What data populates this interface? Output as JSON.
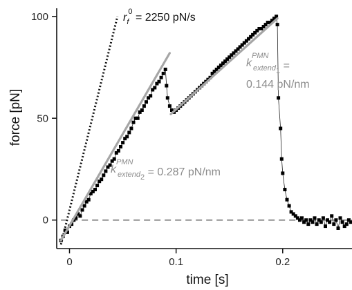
{
  "chart_data": {
    "type": "scatter",
    "title": "",
    "xlabel": "time  [s]",
    "ylabel": "force  [pN]",
    "xlim": [
      -0.012,
      0.265
    ],
    "ylim": [
      -14,
      104
    ],
    "x_ticks": [
      0,
      0.1,
      0.2
    ],
    "x_tick_labels": [
      "0",
      "0.1",
      "0.2"
    ],
    "y_ticks": [
      0,
      50,
      100
    ],
    "y_tick_labels": [
      "0",
      "50",
      "100"
    ],
    "grid": false,
    "legend": "none",
    "colors": {
      "data": "#000000",
      "fit": "#a6a6a6",
      "annotation_fit": "#8c8c8c",
      "baseline": "#909090",
      "loading_rate": "#111111"
    },
    "series": [
      {
        "name": "",
        "style": "markers with thin connecting line",
        "points": [
          [
            -0.008,
            -10
          ],
          [
            -0.006,
            -8
          ],
          [
            -0.004,
            -5
          ],
          [
            -0.002,
            -6
          ],
          [
            0,
            -3
          ],
          [
            0.002,
            -2
          ],
          [
            0.004,
            0
          ],
          [
            0.006,
            1
          ],
          [
            0.008,
            3
          ],
          [
            0.01,
            2
          ],
          [
            0.012,
            5
          ],
          [
            0.014,
            7
          ],
          [
            0.016,
            9
          ],
          [
            0.018,
            10
          ],
          [
            0.02,
            13
          ],
          [
            0.022,
            14
          ],
          [
            0.024,
            15
          ],
          [
            0.026,
            17
          ],
          [
            0.028,
            19
          ],
          [
            0.03,
            20
          ],
          [
            0.032,
            22
          ],
          [
            0.034,
            24
          ],
          [
            0.036,
            26
          ],
          [
            0.038,
            27
          ],
          [
            0.04,
            29
          ],
          [
            0.042,
            30
          ],
          [
            0.044,
            33
          ],
          [
            0.046,
            34
          ],
          [
            0.048,
            36
          ],
          [
            0.05,
            38
          ],
          [
            0.052,
            40
          ],
          [
            0.054,
            41
          ],
          [
            0.056,
            43
          ],
          [
            0.058,
            45
          ],
          [
            0.06,
            48
          ],
          [
            0.062,
            50
          ],
          [
            0.064,
            50
          ],
          [
            0.066,
            53
          ],
          [
            0.068,
            54
          ],
          [
            0.07,
            56
          ],
          [
            0.072,
            58
          ],
          [
            0.074,
            60
          ],
          [
            0.076,
            61
          ],
          [
            0.078,
            64
          ],
          [
            0.08,
            65
          ],
          [
            0.082,
            67
          ],
          [
            0.084,
            68
          ],
          [
            0.086,
            70
          ],
          [
            0.088,
            72
          ],
          [
            0.09,
            74
          ],
          [
            0.091,
            66
          ],
          [
            0.092,
            60
          ],
          [
            0.094,
            56
          ],
          [
            0.096,
            54
          ],
          [
            0.098,
            53
          ],
          [
            0.1,
            54
          ],
          [
            0.102,
            55
          ],
          [
            0.104,
            56
          ],
          [
            0.106,
            57
          ],
          [
            0.108,
            58
          ],
          [
            0.11,
            59
          ],
          [
            0.112,
            60
          ],
          [
            0.114,
            61
          ],
          [
            0.116,
            62
          ],
          [
            0.118,
            63
          ],
          [
            0.12,
            64
          ],
          [
            0.122,
            65
          ],
          [
            0.124,
            66
          ],
          [
            0.126,
            67
          ],
          [
            0.128,
            68
          ],
          [
            0.13,
            69
          ],
          [
            0.132,
            70
          ],
          [
            0.134,
            72
          ],
          [
            0.136,
            73
          ],
          [
            0.138,
            74
          ],
          [
            0.14,
            75
          ],
          [
            0.142,
            76
          ],
          [
            0.144,
            77
          ],
          [
            0.146,
            78
          ],
          [
            0.148,
            79
          ],
          [
            0.15,
            80
          ],
          [
            0.152,
            81
          ],
          [
            0.154,
            82
          ],
          [
            0.156,
            83
          ],
          [
            0.158,
            84
          ],
          [
            0.16,
            85
          ],
          [
            0.162,
            86
          ],
          [
            0.164,
            87
          ],
          [
            0.166,
            88
          ],
          [
            0.168,
            89
          ],
          [
            0.17,
            90
          ],
          [
            0.172,
            91
          ],
          [
            0.174,
            92
          ],
          [
            0.176,
            93
          ],
          [
            0.178,
            94
          ],
          [
            0.18,
            94
          ],
          [
            0.182,
            95
          ],
          [
            0.184,
            96
          ],
          [
            0.186,
            97
          ],
          [
            0.188,
            97
          ],
          [
            0.19,
            98
          ],
          [
            0.192,
            99
          ],
          [
            0.194,
            100
          ],
          [
            0.195,
            96
          ],
          [
            0.196,
            60
          ],
          [
            0.198,
            45
          ],
          [
            0.199,
            30
          ],
          [
            0.2,
            23
          ],
          [
            0.202,
            15
          ],
          [
            0.204,
            10
          ],
          [
            0.206,
            7
          ],
          [
            0.208,
            4
          ],
          [
            0.21,
            3
          ],
          [
            0.212,
            2
          ],
          [
            0.214,
            1
          ],
          [
            0.216,
            0
          ],
          [
            0.218,
            1
          ],
          [
            0.22,
            -1
          ],
          [
            0.222,
            0
          ],
          [
            0.224,
            -2
          ],
          [
            0.226,
            0
          ],
          [
            0.228,
            -1
          ],
          [
            0.23,
            1
          ],
          [
            0.232,
            -2
          ],
          [
            0.234,
            0
          ],
          [
            0.236,
            -1
          ],
          [
            0.238,
            1
          ],
          [
            0.24,
            -3
          ],
          [
            0.242,
            0
          ],
          [
            0.244,
            -1
          ],
          [
            0.246,
            2
          ],
          [
            0.248,
            -2
          ],
          [
            0.25,
            0
          ],
          [
            0.252,
            -4
          ],
          [
            0.254,
            1
          ],
          [
            0.256,
            -1
          ],
          [
            0.258,
            -3
          ],
          [
            0.26,
            -2
          ],
          [
            0.262,
            0
          ],
          [
            0.264,
            -1
          ]
        ]
      }
    ],
    "fit_lines": [
      {
        "label": "k_extend2",
        "points": [
          [
            -0.008,
            -10
          ],
          [
            0.094,
            82
          ]
        ]
      },
      {
        "label": "k_extend1",
        "points": [
          [
            0.095,
            52
          ],
          [
            0.195,
            99
          ]
        ]
      }
    ],
    "baseline": {
      "y": 0,
      "x_range": [
        -0.008,
        0.265
      ]
    },
    "loading_rate_line": {
      "points": [
        [
          -0.008,
          -12
        ],
        [
          0.045,
          100
        ]
      ]
    },
    "annotations": {
      "rate": {
        "symbol": "r",
        "sub": "f",
        "sup": "0",
        "text": " = 2250 pN/s"
      },
      "k1": {
        "symbol": "k",
        "sub": "extend",
        "subsub": "1",
        "sup": "PMN",
        "eq": " =",
        "value": "0.144 pN/nm"
      },
      "k2": {
        "symbol": "k",
        "sub": "extend",
        "subsub": "2",
        "sup": "PMN",
        "eq": " = 0.287 pN/nm"
      }
    }
  }
}
